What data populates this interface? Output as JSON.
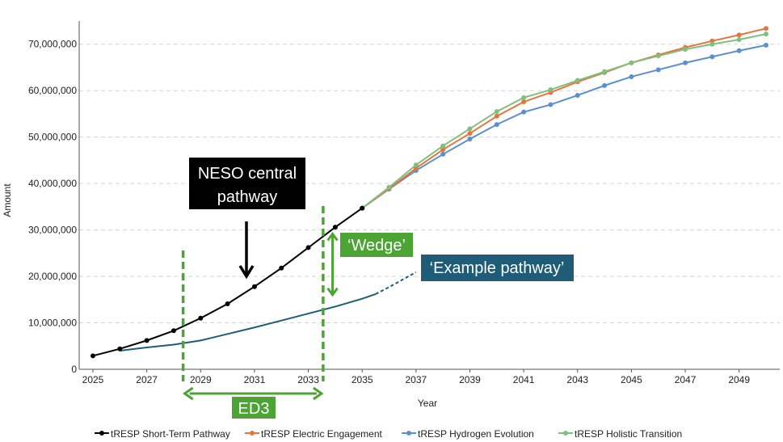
{
  "chart_data": {
    "type": "line",
    "title": "",
    "xlabel": "Year",
    "ylabel": "Amount",
    "xlim": [
      2025,
      2050
    ],
    "ylim": [
      0,
      75000000
    ],
    "x_ticks": [
      "2025",
      "2027",
      "2029",
      "2031",
      "2033",
      "2035",
      "2037",
      "2039",
      "2041",
      "2043",
      "2045",
      "2047",
      "2049"
    ],
    "y_ticks": [
      "0",
      "10,000,000",
      "20,000,000",
      "30,000,000",
      "40,000,000",
      "50,000,000",
      "60,000,000",
      "70,000,000"
    ],
    "grid": "horizontal dashed",
    "legend_position": "bottom",
    "series": [
      {
        "name": "tRESP Short-Term Pathway",
        "color": "#000000",
        "x": [
          2025,
          2026,
          2027,
          2028,
          2029,
          2030,
          2031,
          2032,
          2033,
          2034,
          2035
        ],
        "y": [
          2900000,
          4400000,
          6200000,
          8300000,
          11000000,
          14100000,
          17800000,
          21800000,
          26200000,
          30600000,
          34700000
        ]
      },
      {
        "name": "tRESP Electric Engagement",
        "color": "#E8743B",
        "x": [
          2035,
          2036,
          2037,
          2038,
          2039,
          2040,
          2041,
          2042,
          2043,
          2044,
          2045,
          2046,
          2047,
          2048,
          2049,
          2050
        ],
        "y": [
          34700000,
          38900000,
          43300000,
          47300000,
          50800000,
          54500000,
          57600000,
          59600000,
          61900000,
          63900000,
          66000000,
          67700000,
          69300000,
          70700000,
          72000000,
          73400000
        ]
      },
      {
        "name": "tRESP Hydrogen Evolution",
        "color": "#5B8FD4",
        "x": [
          2035,
          2036,
          2037,
          2038,
          2039,
          2040,
          2041,
          2042,
          2043,
          2044,
          2045,
          2046,
          2047,
          2048,
          2049,
          2050
        ],
        "y": [
          34700000,
          38800000,
          42800000,
          46300000,
          49600000,
          52700000,
          55400000,
          57000000,
          59000000,
          61100000,
          63000000,
          64500000,
          66000000,
          67300000,
          68600000,
          69800000
        ]
      },
      {
        "name": "tRESP Holistic Transition",
        "color": "#7FBF7F",
        "x": [
          2035,
          2036,
          2037,
          2038,
          2039,
          2040,
          2041,
          2042,
          2043,
          2044,
          2045,
          2046,
          2047,
          2048,
          2049,
          2050
        ],
        "y": [
          34700000,
          39200000,
          44000000,
          48100000,
          51800000,
          55500000,
          58500000,
          60200000,
          62200000,
          64100000,
          66000000,
          67500000,
          68900000,
          70000000,
          71000000,
          72200000
        ]
      }
    ],
    "example_pathway": {
      "color": "#1F5C78",
      "solid": {
        "x": [
          2026,
          2027,
          2028,
          2029,
          2030,
          2031,
          2032,
          2033,
          2034,
          2035,
          2035.5
        ],
        "y": [
          4000000,
          4700000,
          5300000,
          6200000,
          7600000,
          9000000,
          10500000,
          12000000,
          13500000,
          15200000,
          16200000
        ]
      },
      "dashed": {
        "x": [
          2035.5,
          2036,
          2037
        ],
        "y": [
          16200000,
          17700000,
          20900000
        ]
      }
    },
    "annotations": {
      "neso_line1": "NESO central",
      "neso_line2": "pathway",
      "wedge": "‘Wedge’",
      "example_pathway": "‘Example pathway’",
      "ed3": "ED3",
      "ed3_start_year": 2028.35,
      "ed3_end_year": 2033.55,
      "wedge_year": 2033.9,
      "wedge_top": 29500000,
      "wedge_bottom": 15700000,
      "annotation_green": "#4CA435",
      "annotation_black": "#000000",
      "annotation_teal": "#1F5C78"
    }
  }
}
